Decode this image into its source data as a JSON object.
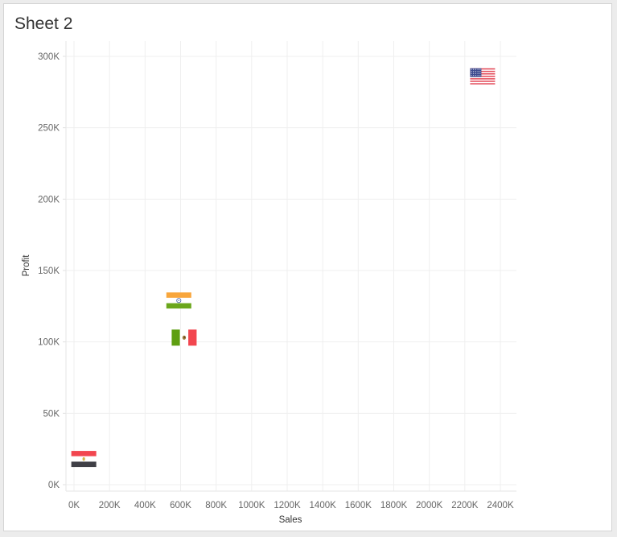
{
  "sheet": {
    "title": "Sheet 2"
  },
  "chart_data": {
    "type": "scatter",
    "title": "",
    "xlabel": "Sales",
    "ylabel": "Profit",
    "xlim": [
      0,
      2400000
    ],
    "ylim": [
      0,
      300000
    ],
    "x_ticks": [
      0,
      200000,
      400000,
      600000,
      800000,
      1000000,
      1200000,
      1400000,
      1600000,
      1800000,
      2000000,
      2200000,
      2400000
    ],
    "x_tick_labels": [
      "0K",
      "200K",
      "400K",
      "600K",
      "800K",
      "1000K",
      "1200K",
      "1400K",
      "1600K",
      "1800K",
      "2000K",
      "2200K",
      "2400K"
    ],
    "y_ticks": [
      0,
      50000,
      100000,
      150000,
      200000,
      250000,
      300000
    ],
    "y_tick_labels": [
      "0K",
      "50K",
      "100K",
      "150K",
      "200K",
      "250K",
      "300K"
    ],
    "grid": true,
    "mark_shape": "country-flag",
    "points": [
      {
        "flag": "united-states",
        "x": 2300000,
        "y": 286000
      },
      {
        "flag": "india",
        "x": 590000,
        "y": 129000
      },
      {
        "flag": "mexico",
        "x": 620000,
        "y": 103000
      },
      {
        "flag": "egypt",
        "x": 55000,
        "y": 18000
      }
    ]
  }
}
